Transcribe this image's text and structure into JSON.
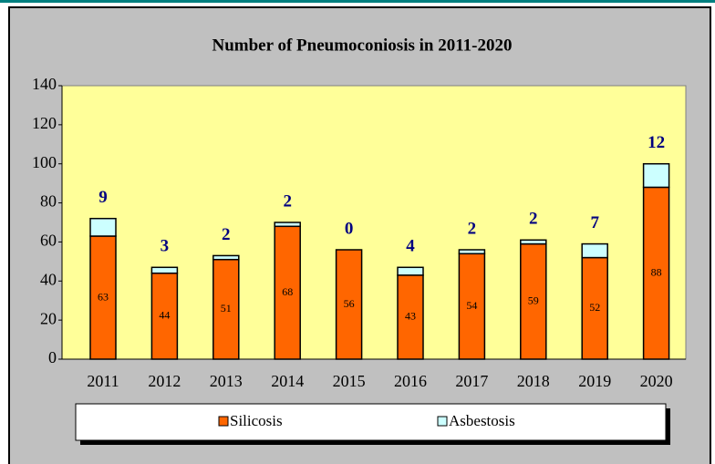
{
  "chart_data": {
    "type": "stacked_bar",
    "title": "Number of Pneumoconiosis in 2011-2020",
    "categories": [
      "2011",
      "2012",
      "2013",
      "2014",
      "2015",
      "2016",
      "2017",
      "2018",
      "2019",
      "2020"
    ],
    "series": [
      {
        "name": "Silicosis",
        "color": "#ff6600",
        "values": [
          63,
          44,
          51,
          68,
          56,
          43,
          54,
          59,
          52,
          88
        ]
      },
      {
        "name": "Asbestosis",
        "color": "#ccffff",
        "values": [
          9,
          3,
          2,
          2,
          0,
          4,
          2,
          2,
          7,
          12
        ]
      }
    ],
    "ylim": [
      0,
      140
    ],
    "yticks": [
      0,
      20,
      40,
      60,
      80,
      100,
      120,
      140
    ],
    "grid": false
  }
}
